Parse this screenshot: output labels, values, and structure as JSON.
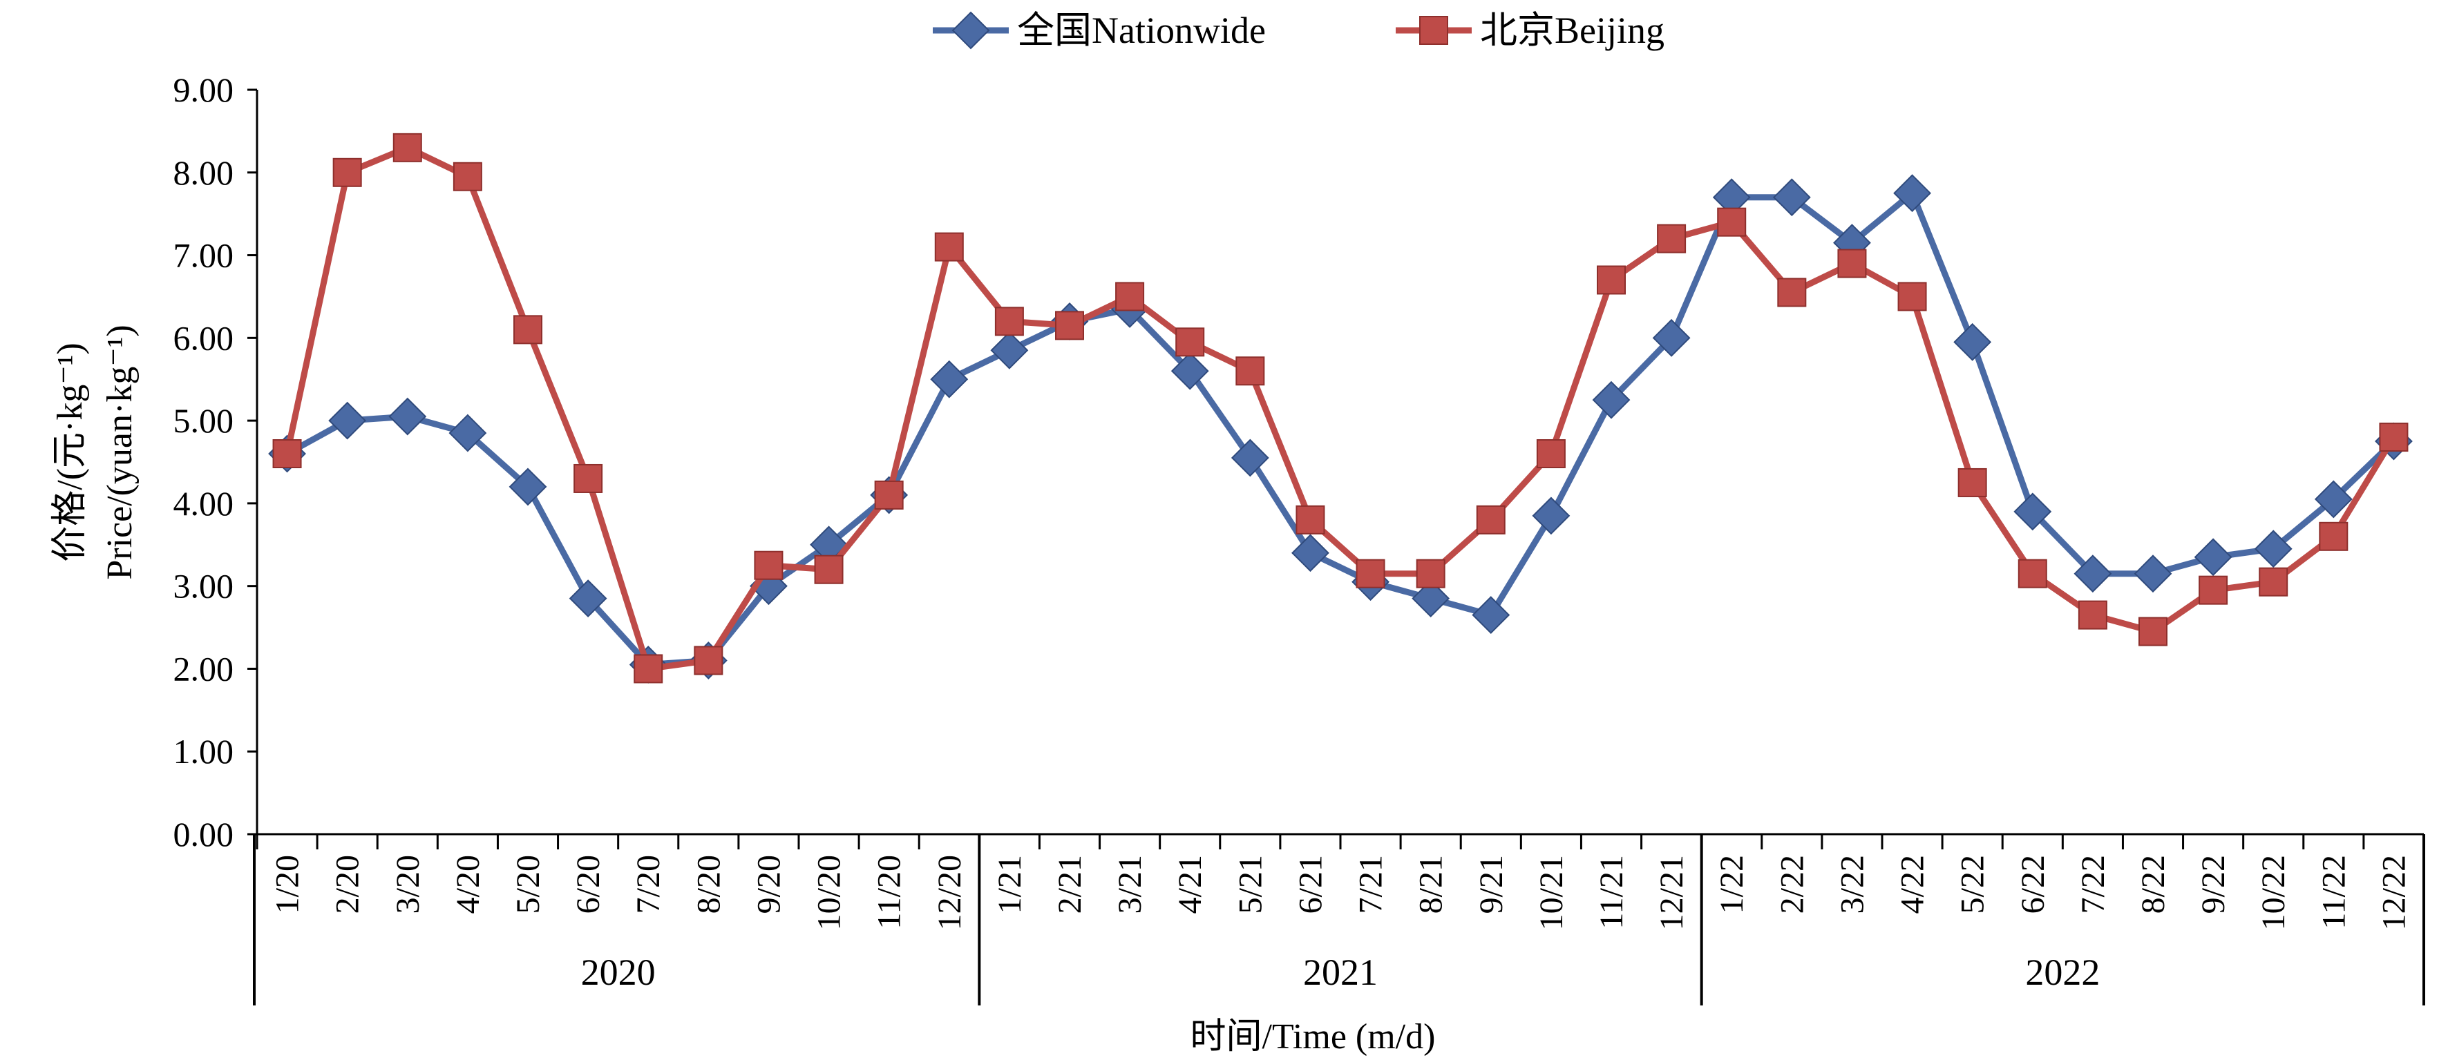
{
  "chart_data": {
    "type": "line",
    "xlabel": "时间/Time (m/d)",
    "ylabel_line1": "价格/(元·kg⁻¹)",
    "ylabel_line2": "Price/(yuan·kg⁻¹)",
    "ylim": [
      0,
      9
    ],
    "yticks": [
      "0.00",
      "1.00",
      "2.00",
      "3.00",
      "4.00",
      "5.00",
      "6.00",
      "7.00",
      "8.00",
      "9.00"
    ],
    "grid": false,
    "legend_position": "top-center",
    "categories": [
      "1/20",
      "2/20",
      "3/20",
      "4/20",
      "5/20",
      "6/20",
      "7/20",
      "8/20",
      "9/20",
      "10/20",
      "11/20",
      "12/20",
      "1/21",
      "2/21",
      "3/21",
      "4/21",
      "5/21",
      "6/21",
      "7/21",
      "8/21",
      "9/21",
      "10/21",
      "11/21",
      "12/21",
      "1/22",
      "2/22",
      "3/22",
      "4/22",
      "5/22",
      "6/22",
      "7/22",
      "8/22",
      "9/22",
      "10/22",
      "11/22",
      "12/22"
    ],
    "years": [
      "2020",
      "2021",
      "2022"
    ],
    "series": [
      {
        "name": "全国Nationwide",
        "color": "#4a6aa4",
        "marker": "diamond",
        "values": [
          4.6,
          5.0,
          5.05,
          4.85,
          4.2,
          2.85,
          2.05,
          2.1,
          3.0,
          3.5,
          4.1,
          5.5,
          5.85,
          6.2,
          6.35,
          5.6,
          4.55,
          3.4,
          3.05,
          2.85,
          2.65,
          3.85,
          5.25,
          6.0,
          7.7,
          7.7,
          7.15,
          7.75,
          5.95,
          3.9,
          3.15,
          3.15,
          3.35,
          3.45,
          4.05,
          4.75
        ]
      },
      {
        "name": "北京Beijing",
        "color": "#be4b48",
        "marker": "square",
        "values": [
          4.6,
          8.0,
          8.3,
          7.95,
          6.1,
          4.3,
          2.0,
          2.1,
          3.25,
          3.2,
          4.1,
          7.1,
          6.2,
          6.15,
          6.5,
          5.95,
          5.6,
          3.8,
          3.15,
          3.15,
          3.8,
          4.6,
          6.7,
          7.2,
          7.4,
          6.55,
          6.9,
          6.5,
          4.25,
          3.15,
          2.65,
          2.45,
          2.95,
          3.05,
          3.6,
          4.8
        ]
      }
    ]
  }
}
